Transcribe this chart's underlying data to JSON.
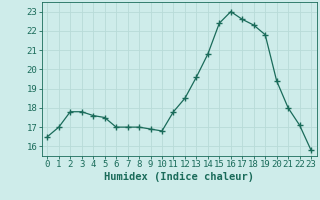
{
  "x": [
    0,
    1,
    2,
    3,
    4,
    5,
    6,
    7,
    8,
    9,
    10,
    11,
    12,
    13,
    14,
    15,
    16,
    17,
    18,
    19,
    20,
    21,
    22,
    23
  ],
  "y": [
    16.5,
    17.0,
    17.8,
    17.8,
    17.6,
    17.5,
    17.0,
    17.0,
    17.0,
    16.9,
    16.8,
    17.8,
    18.5,
    19.6,
    20.8,
    22.4,
    23.0,
    22.6,
    22.3,
    21.8,
    19.4,
    18.0,
    17.1,
    15.8
  ],
  "line_color": "#1a6b5a",
  "marker": "D",
  "marker_size": 2.5,
  "bg_color": "#ceecea",
  "grid_color": "#b8dbd8",
  "xlabel": "Humidex (Indice chaleur)",
  "ylim": [
    15.5,
    23.5
  ],
  "xlim": [
    -0.5,
    23.5
  ],
  "yticks": [
    16,
    17,
    18,
    19,
    20,
    21,
    22,
    23
  ],
  "xticks": [
    0,
    1,
    2,
    3,
    4,
    5,
    6,
    7,
    8,
    9,
    10,
    11,
    12,
    13,
    14,
    15,
    16,
    17,
    18,
    19,
    20,
    21,
    22,
    23
  ],
  "tick_color": "#1a6b5a",
  "label_fontsize": 6.5,
  "xlabel_fontsize": 7.5
}
